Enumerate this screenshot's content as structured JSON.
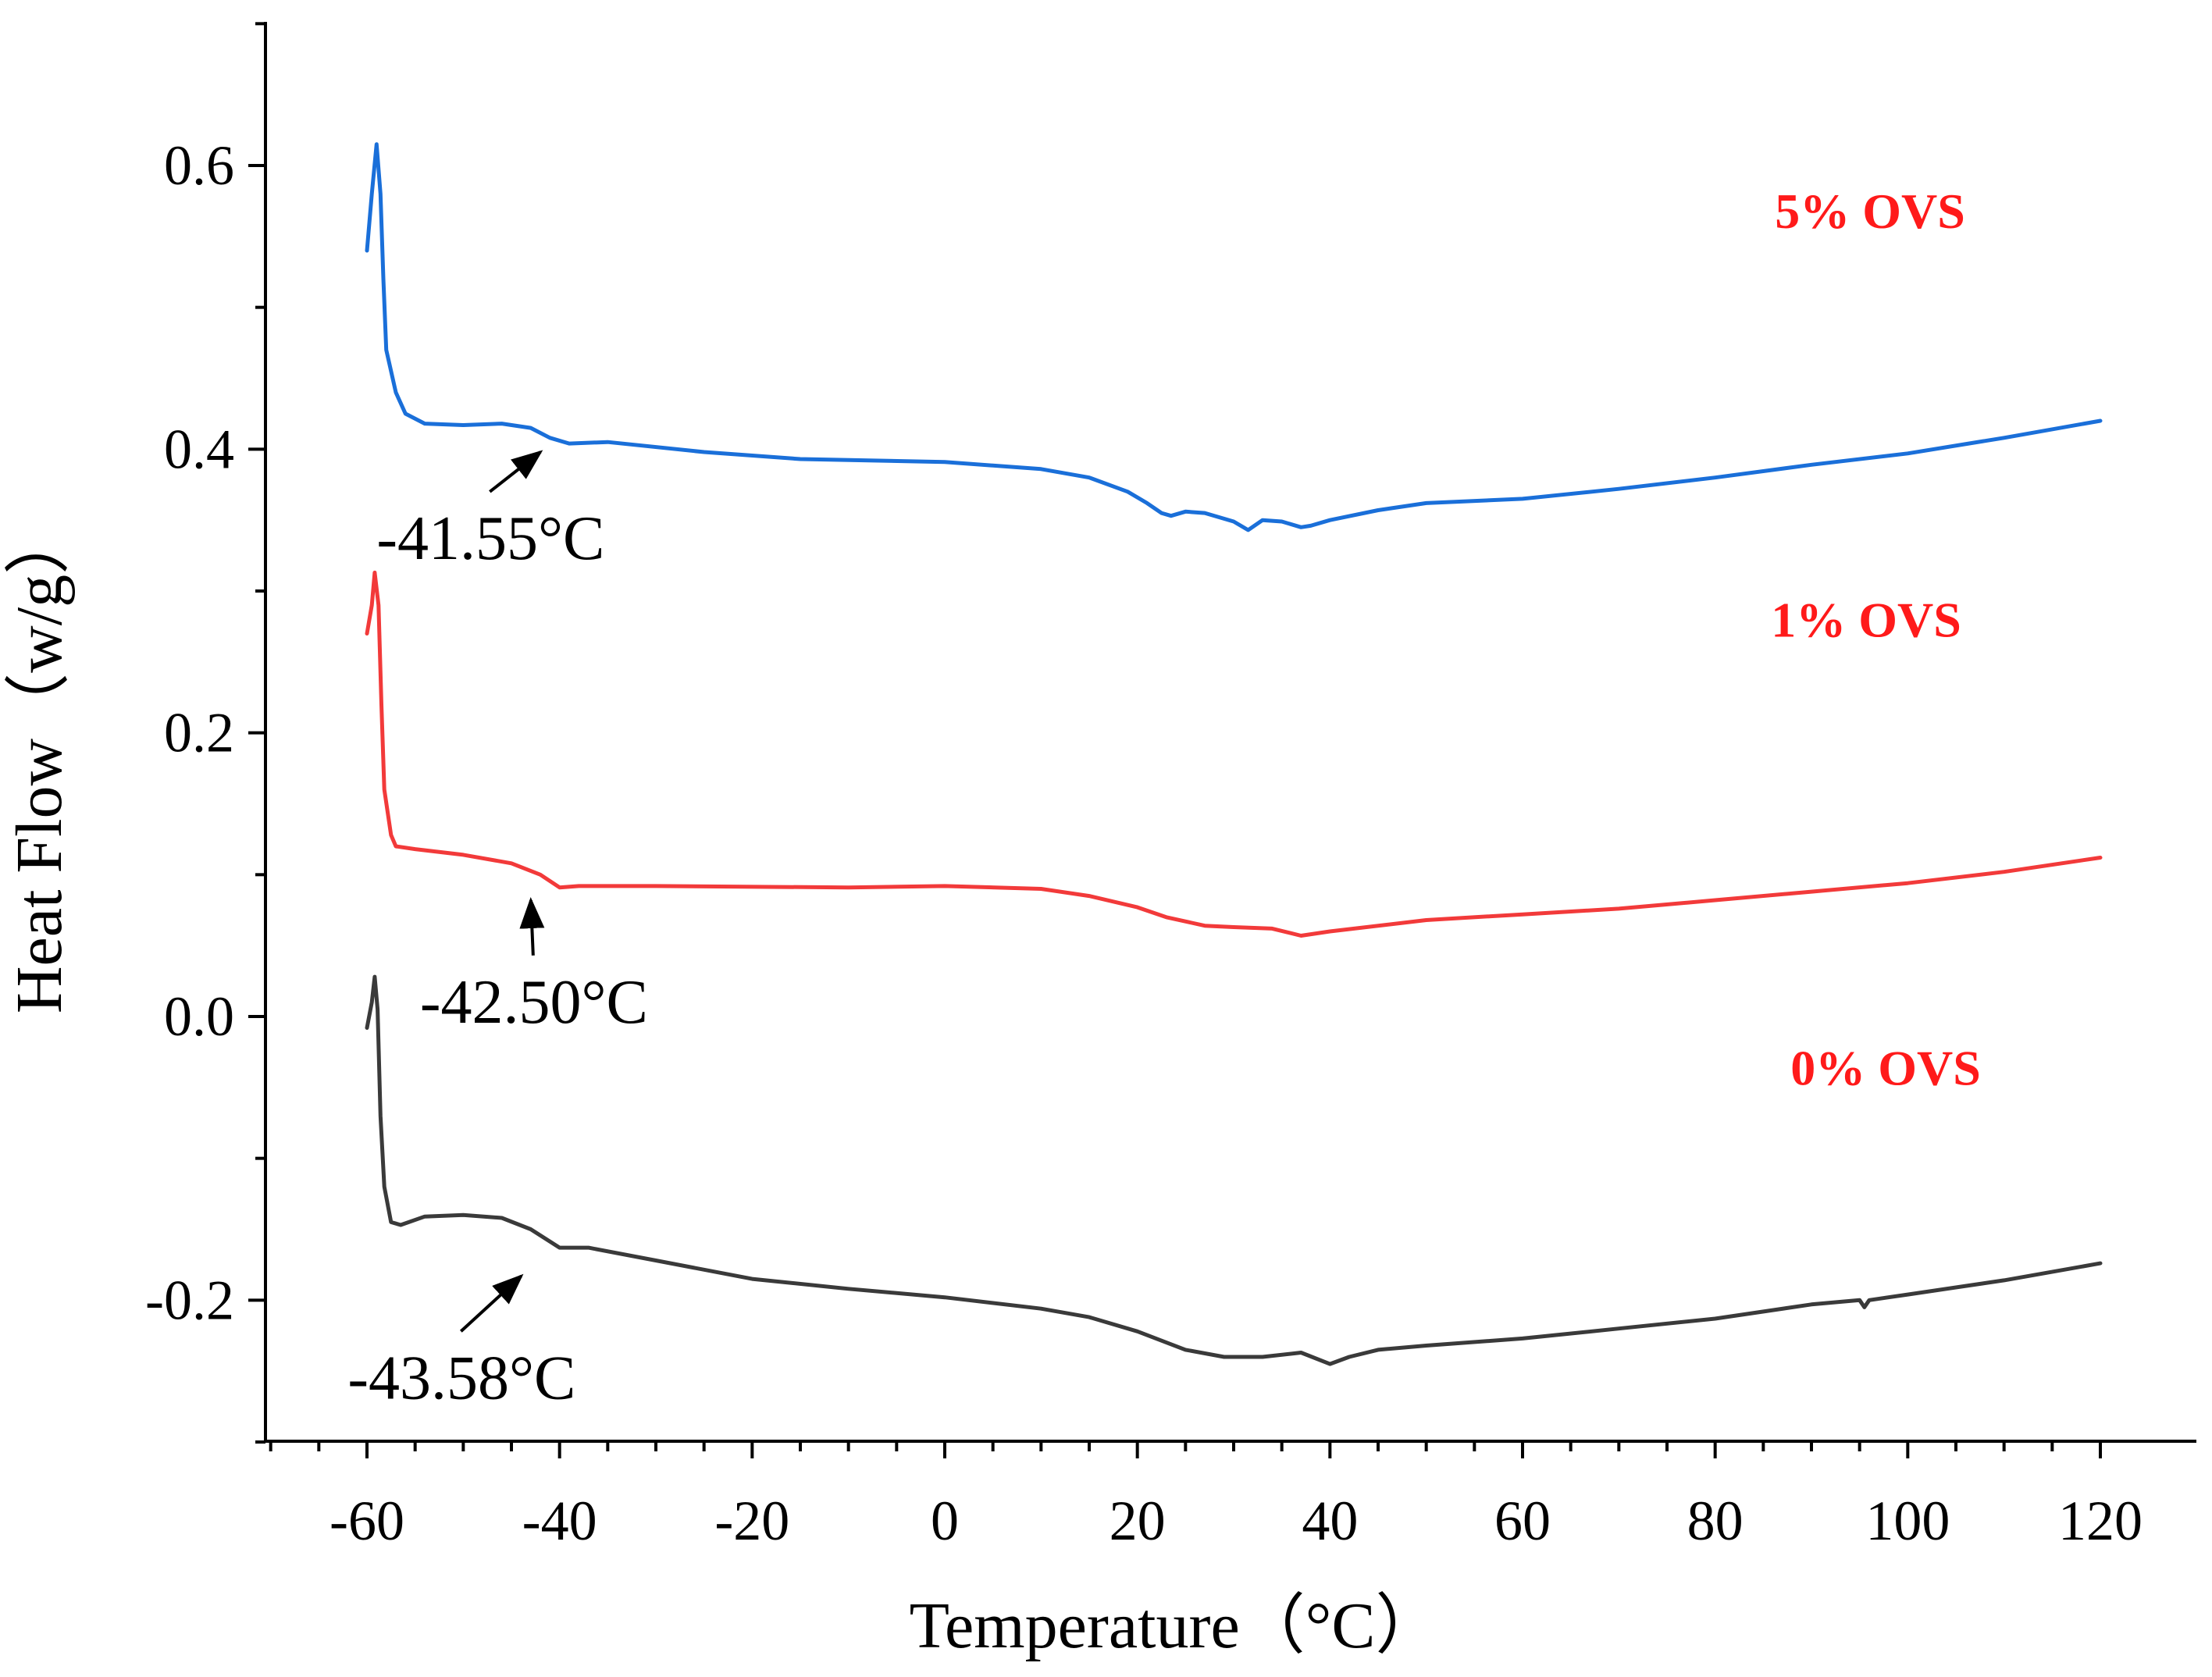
{
  "chart_data": {
    "type": "line",
    "title": "",
    "xlabel": "Temperature（°C）",
    "ylabel": "Heat Flow（w/g）",
    "xlim": [
      -70,
      121
    ],
    "ylim": [
      -0.3,
      0.7
    ],
    "x_ticks": [
      -60,
      -40,
      -20,
      0,
      20,
      40,
      60,
      80,
      100,
      120
    ],
    "x_tick_labels": [
      "-60",
      "-40",
      "-20",
      "0",
      "20",
      "40",
      "60",
      "80",
      "100",
      "120"
    ],
    "y_ticks": [
      -0.2,
      0.0,
      0.2,
      0.4,
      0.6
    ],
    "y_tick_labels": [
      "-0.2",
      "0.0",
      "0.2",
      "0.4",
      "0.6"
    ],
    "grid": false,
    "legend": "inline labels at right",
    "series": [
      {
        "name": "5% OVS",
        "color": "#1a6fd9",
        "label_color": "#ff1a1a",
        "points": [
          [
            -60,
            0.54
          ],
          [
            -59.5,
            0.58
          ],
          [
            -59,
            0.615
          ],
          [
            -58.6,
            0.58
          ],
          [
            -58.3,
            0.52
          ],
          [
            -58,
            0.47
          ],
          [
            -57,
            0.44
          ],
          [
            -56,
            0.425
          ],
          [
            -54,
            0.418
          ],
          [
            -50,
            0.417
          ],
          [
            -46,
            0.418
          ],
          [
            -43,
            0.415
          ],
          [
            -41,
            0.408
          ],
          [
            -39,
            0.404
          ],
          [
            -35,
            0.405
          ],
          [
            -25,
            0.398
          ],
          [
            -15,
            0.393
          ],
          [
            0,
            0.391
          ],
          [
            10,
            0.386
          ],
          [
            15,
            0.38
          ],
          [
            19,
            0.37
          ],
          [
            21,
            0.362
          ],
          [
            22.5,
            0.355
          ],
          [
            23.5,
            0.353
          ],
          [
            25,
            0.356
          ],
          [
            27,
            0.355
          ],
          [
            30,
            0.349
          ],
          [
            31.5,
            0.343
          ],
          [
            33,
            0.35
          ],
          [
            35,
            0.349
          ],
          [
            37,
            0.345
          ],
          [
            38,
            0.346
          ],
          [
            40,
            0.35
          ],
          [
            45,
            0.357
          ],
          [
            50,
            0.362
          ],
          [
            60,
            0.365
          ],
          [
            70,
            0.372
          ],
          [
            80,
            0.38
          ],
          [
            90,
            0.389
          ],
          [
            100,
            0.397
          ],
          [
            110,
            0.408
          ],
          [
            120,
            0.42
          ]
        ]
      },
      {
        "name": "1% OVS",
        "color": "#f23a3a",
        "label_color": "#ff1a1a",
        "points": [
          [
            -60,
            0.27
          ],
          [
            -59.5,
            0.29
          ],
          [
            -59.2,
            0.313
          ],
          [
            -58.8,
            0.29
          ],
          [
            -58.5,
            0.22
          ],
          [
            -58.2,
            0.16
          ],
          [
            -57.5,
            0.128
          ],
          [
            -57,
            0.12
          ],
          [
            -55,
            0.118
          ],
          [
            -50,
            0.114
          ],
          [
            -45,
            0.108
          ],
          [
            -42,
            0.1
          ],
          [
            -40,
            0.091
          ],
          [
            -38,
            0.092
          ],
          [
            -30,
            0.092
          ],
          [
            -10,
            0.091
          ],
          [
            0,
            0.092
          ],
          [
            10,
            0.09
          ],
          [
            15,
            0.085
          ],
          [
            20,
            0.077
          ],
          [
            23,
            0.07
          ],
          [
            27,
            0.064
          ],
          [
            30,
            0.063
          ],
          [
            34,
            0.062
          ],
          [
            37,
            0.057
          ],
          [
            40,
            0.06
          ],
          [
            50,
            0.068
          ],
          [
            60,
            0.072
          ],
          [
            70,
            0.076
          ],
          [
            80,
            0.082
          ],
          [
            90,
            0.088
          ],
          [
            100,
            0.094
          ],
          [
            110,
            0.102
          ],
          [
            120,
            0.112
          ]
        ]
      },
      {
        "name": "0% OVS",
        "color": "#3a3a3a",
        "label_color": "#ff1a1a",
        "points": [
          [
            -60,
            -0.008
          ],
          [
            -59.5,
            0.01
          ],
          [
            -59.2,
            0.028
          ],
          [
            -58.9,
            0.005
          ],
          [
            -58.6,
            -0.07
          ],
          [
            -58.2,
            -0.12
          ],
          [
            -57.5,
            -0.145
          ],
          [
            -56.5,
            -0.147
          ],
          [
            -54,
            -0.141
          ],
          [
            -50,
            -0.14
          ],
          [
            -46,
            -0.142
          ],
          [
            -43,
            -0.15
          ],
          [
            -40,
            -0.163
          ],
          [
            -37,
            -0.163
          ],
          [
            -30,
            -0.172
          ],
          [
            -20,
            -0.185
          ],
          [
            -10,
            -0.192
          ],
          [
            0,
            -0.198
          ],
          [
            10,
            -0.206
          ],
          [
            15,
            -0.212
          ],
          [
            20,
            -0.222
          ],
          [
            25,
            -0.235
          ],
          [
            29,
            -0.24
          ],
          [
            33,
            -0.24
          ],
          [
            37,
            -0.237
          ],
          [
            40,
            -0.245
          ],
          [
            42,
            -0.24
          ],
          [
            45,
            -0.235
          ],
          [
            50,
            -0.232
          ],
          [
            60,
            -0.227
          ],
          [
            70,
            -0.22
          ],
          [
            80,
            -0.213
          ],
          [
            90,
            -0.203
          ],
          [
            95,
            -0.2
          ],
          [
            95.5,
            -0.205
          ],
          [
            96,
            -0.2
          ],
          [
            100,
            -0.196
          ],
          [
            110,
            -0.186
          ],
          [
            120,
            -0.174
          ]
        ]
      }
    ],
    "annotations": [
      {
        "text": "-41.55°C",
        "series": "5% OVS",
        "target": [
          -41.5,
          0.409
        ],
        "label_anchor": [
          -59,
          0.337
        ]
      },
      {
        "text": "-42.50°C",
        "series": "1% OVS",
        "target": [
          -42.5,
          0.093
        ],
        "label_anchor": [
          -54.5,
          0.01
        ]
      },
      {
        "text": "-43.58°C",
        "series": "0% OVS",
        "target": [
          -43.5,
          -0.172
        ],
        "label_anchor": [
          -62,
          -0.255
        ]
      }
    ]
  }
}
